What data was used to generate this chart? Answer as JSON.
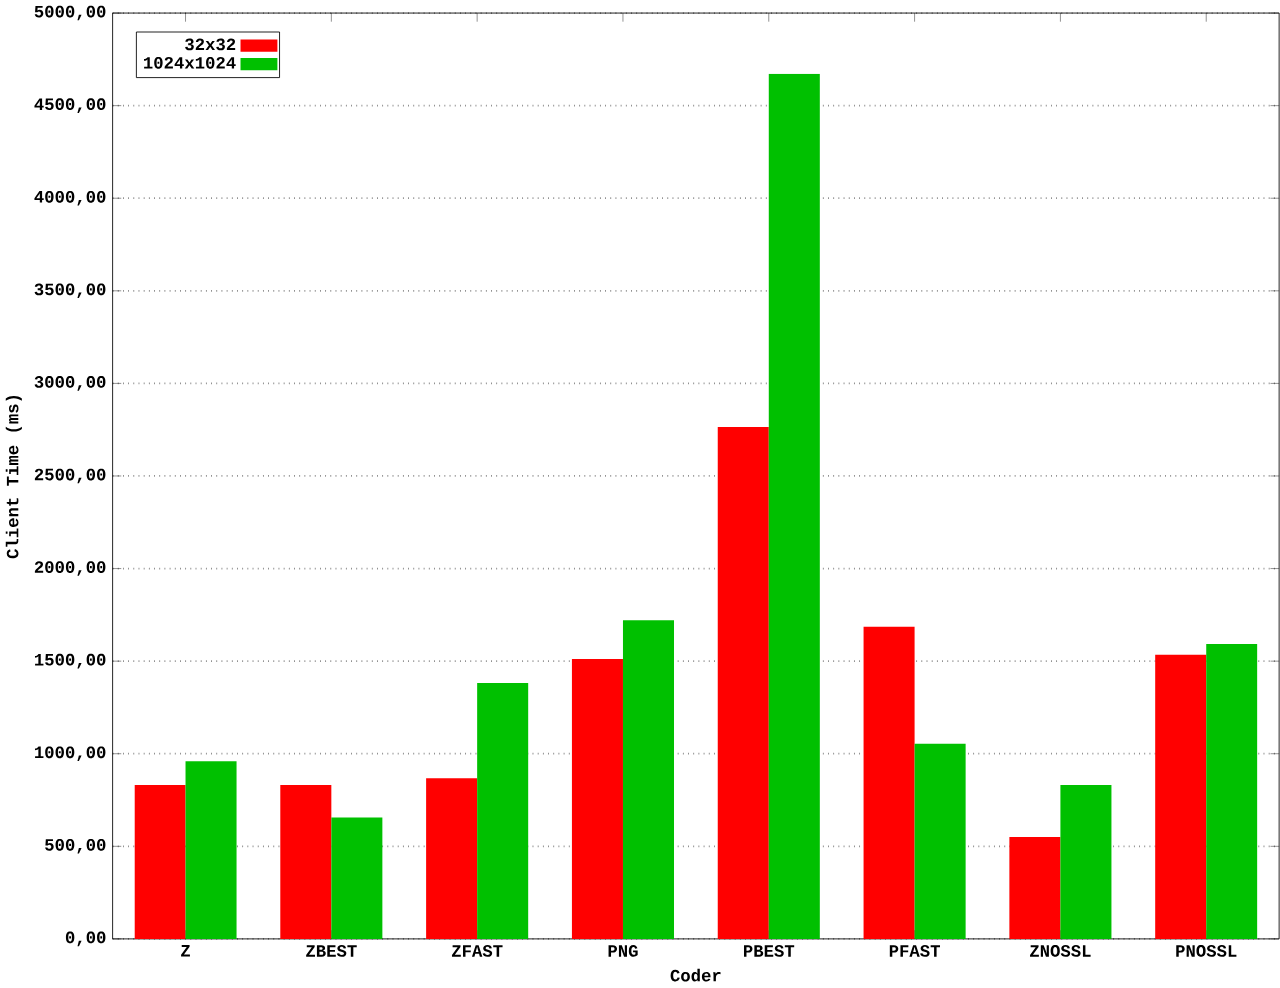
{
  "chart_data": {
    "type": "bar",
    "xlabel": "Coder",
    "ylabel": "Client Time (ms)",
    "categories": [
      "Z",
      "ZBEST",
      "ZFAST",
      "PNG",
      "PBEST",
      "PFAST",
      "ZNOSSL",
      "PNOSSL"
    ],
    "series": [
      {
        "name": "32x32",
        "color": "#ff0000",
        "values": [
          831,
          831,
          867,
          1511,
          2764,
          1686,
          550,
          1534
        ]
      },
      {
        "name": "1024x1024",
        "color": "#00c000",
        "values": [
          960,
          656,
          1382,
          1721,
          4672,
          1054,
          831,
          1593
        ]
      }
    ],
    "ylim": [
      0,
      5000
    ],
    "yticks": [
      {
        "value": 0,
        "label": "0,00"
      },
      {
        "value": 500,
        "label": "500,00"
      },
      {
        "value": 1000,
        "label": "1000,00"
      },
      {
        "value": 1500,
        "label": "1500,00"
      },
      {
        "value": 2000,
        "label": "2000,00"
      },
      {
        "value": 2500,
        "label": "2500,00"
      },
      {
        "value": 3000,
        "label": "3000,00"
      },
      {
        "value": 3500,
        "label": "3500,00"
      },
      {
        "value": 4000,
        "label": "4000,00"
      },
      {
        "value": 4500,
        "label": "4500,00"
      },
      {
        "value": 5000,
        "label": "5000,00"
      }
    ],
    "grid": "y",
    "legend": "top left"
  }
}
